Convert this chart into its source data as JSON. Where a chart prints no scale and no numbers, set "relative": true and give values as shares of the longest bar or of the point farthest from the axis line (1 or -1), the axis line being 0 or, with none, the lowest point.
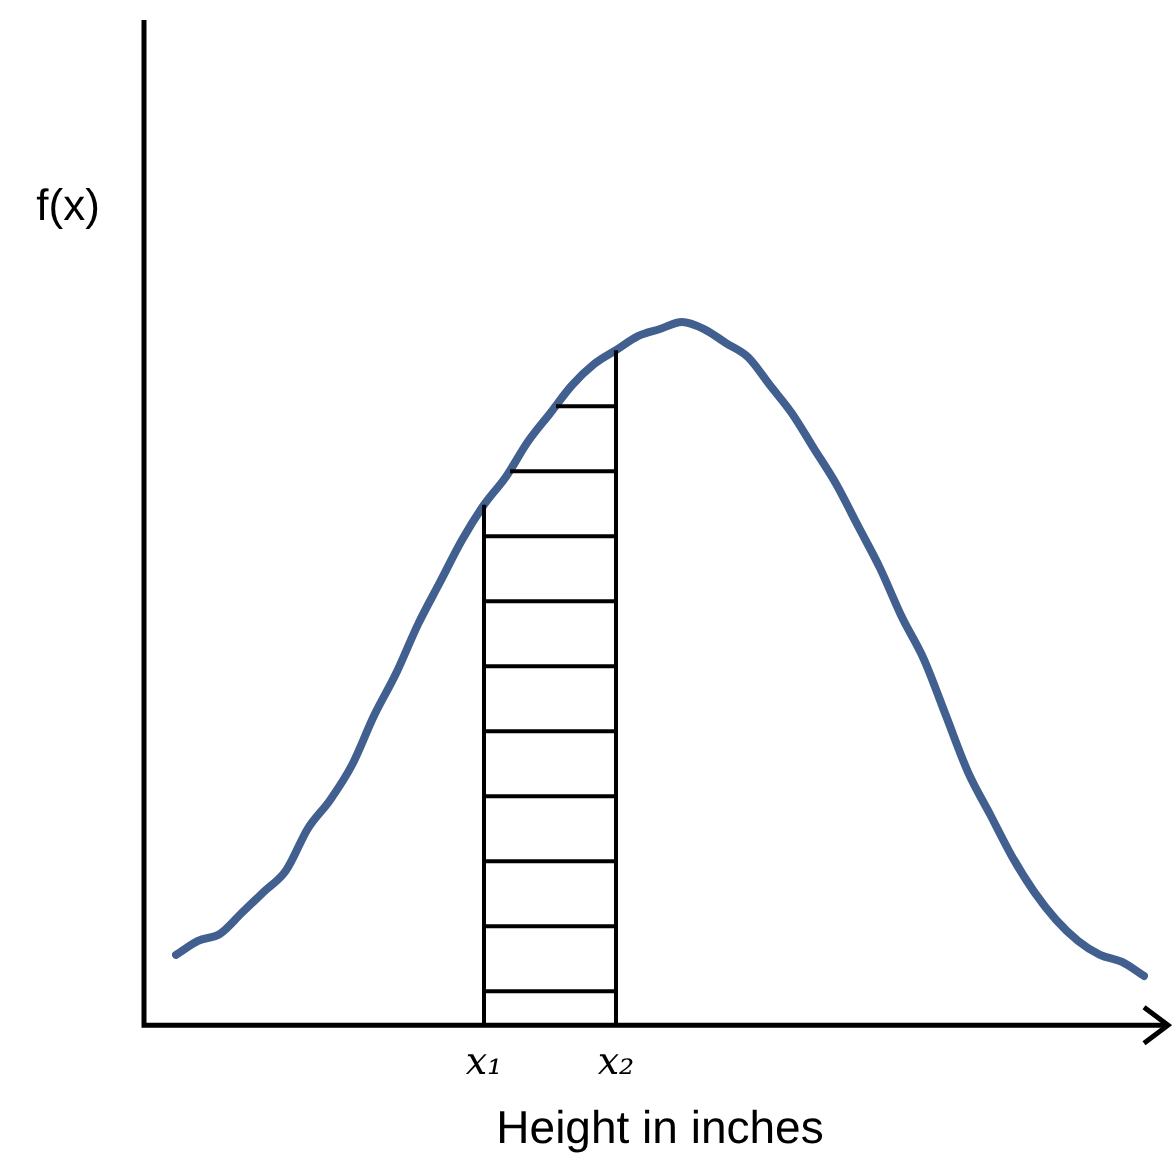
{
  "chart_data": {
    "type": "line",
    "relative": true,
    "xlabel": "Height in inches",
    "ylabel": "f(x)",
    "color": "#41608f",
    "grid": false,
    "legend": false,
    "marker": "none",
    "line_style": "solid",
    "categories": [
      null,
      null,
      null,
      null,
      null,
      null,
      null,
      null,
      null,
      null,
      null,
      null,
      null,
      null,
      "x₁",
      null,
      null,
      null,
      null,
      null,
      "x₂",
      null,
      null,
      null,
      null,
      null,
      null,
      null,
      null,
      null,
      null,
      null,
      null,
      null,
      null,
      null,
      null,
      null,
      null,
      null,
      null,
      null,
      null,
      null,
      null
    ],
    "values": [
      0.1,
      0.12,
      0.13,
      0.16,
      0.19,
      0.22,
      0.28,
      0.32,
      0.37,
      0.44,
      0.5,
      0.57,
      0.63,
      0.69,
      0.74,
      0.78,
      0.83,
      0.87,
      0.91,
      0.94,
      0.96,
      0.98,
      0.99,
      1.0,
      0.99,
      0.97,
      0.95,
      0.91,
      0.87,
      0.82,
      0.77,
      0.71,
      0.65,
      0.58,
      0.52,
      0.44,
      0.36,
      0.3,
      0.24,
      0.19,
      0.15,
      0.12,
      0.1,
      0.09,
      0.07
    ],
    "ref_lines": [
      {
        "axis": "x",
        "value": "x₁",
        "color": "#000000"
      },
      {
        "axis": "x",
        "value": "x₂",
        "color": "#000000"
      }
    ]
  }
}
